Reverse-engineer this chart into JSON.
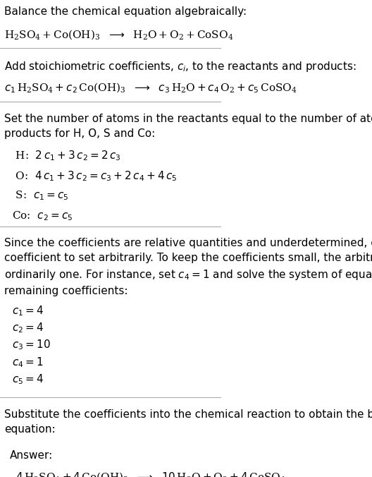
{
  "bg_color": "#ffffff",
  "text_color": "#000000",
  "answer_box_color": "#e8f4f8",
  "answer_box_border": "#7ab8d4",
  "section1_title": "Balance the chemical equation algebraically:",
  "section2_title": "Add stoichiometric coefficients, $c_i$, to the reactants and products:",
  "section3_title": "Set the number of atoms in the reactants equal to the number of atoms in the\nproducts for H, O, S and Co:",
  "section4_text": "Since the coefficients are relative quantities and underdetermined, choose a\ncoefficient to set arbitrarily. To keep the coefficients small, the arbitrary value is\nordinarily one. For instance, set $c_4 = 1$ and solve the system of equations for the\nremaining coefficients:",
  "section4_lines": [
    "$c_1 = 4$",
    "$c_2 = 4$",
    "$c_3 = 10$",
    "$c_4 = 1$",
    "$c_5 = 4$"
  ],
  "section5_title": "Substitute the coefficients into the chemical reaction to obtain the balanced\nequation:",
  "answer_label": "Answer:",
  "line_color": "#aaaaaa",
  "font_size": 11
}
